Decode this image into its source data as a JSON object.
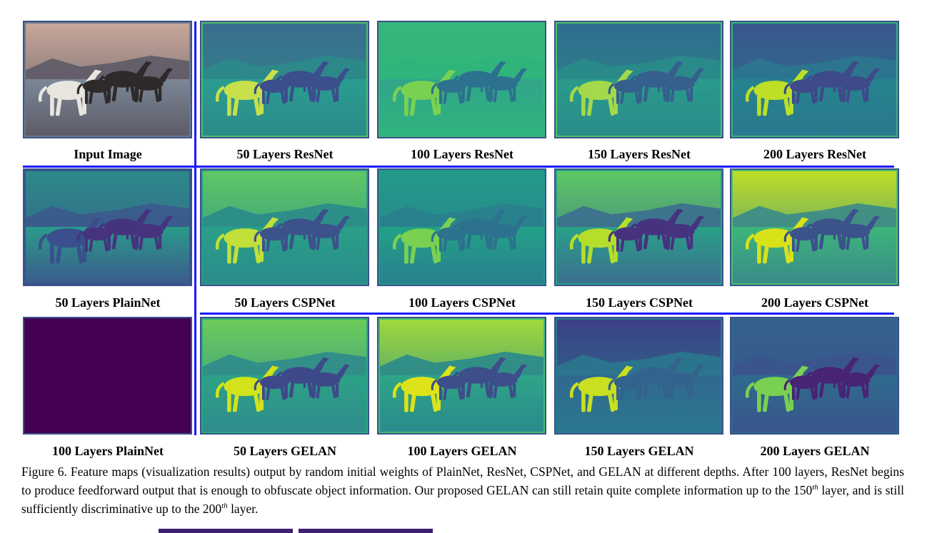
{
  "figure": {
    "rows": [
      {
        "tiles": [
          {
            "label": "Input Image",
            "kind": "input"
          },
          {
            "label": "50 Layers ResNet",
            "kind": "resnet50"
          },
          {
            "label": "100 Layers ResNet",
            "kind": "resnet100"
          },
          {
            "label": "150 Layers ResNet",
            "kind": "resnet150"
          },
          {
            "label": "200 Layers ResNet",
            "kind": "resnet200"
          }
        ]
      },
      {
        "tiles": [
          {
            "label": "50 Layers PlainNet",
            "kind": "plain50"
          },
          {
            "label": "50 Layers CSPNet",
            "kind": "csp50"
          },
          {
            "label": "100 Layers CSPNet",
            "kind": "csp100"
          },
          {
            "label": "150 Layers CSPNet",
            "kind": "csp150"
          },
          {
            "label": "200 Layers CSPNet",
            "kind": "csp200"
          }
        ]
      },
      {
        "tiles": [
          {
            "label": "100 Layers PlainNet",
            "kind": "plain100"
          },
          {
            "label": "50 Layers GELAN",
            "kind": "gelan50"
          },
          {
            "label": "100 Layers GELAN",
            "kind": "gelan100"
          },
          {
            "label": "150 Layers GELAN",
            "kind": "gelan150"
          },
          {
            "label": "200 Layers GELAN",
            "kind": "gelan200"
          }
        ]
      }
    ],
    "caption": {
      "part1": "Figure 6. Feature maps (visualization results) output by random initial weights of PlainNet, ResNet, CSPNet, and GELAN at different depths. After 100 layers, ResNet begins to produce feedforward output that is enough to obfuscate object information. Our proposed GELAN can still retain quite complete information up to the 150",
      "sup1": "th",
      "part2": " layer, and is still sufficiently discriminative up to the 200",
      "sup2": "th",
      "part3": " layer."
    },
    "colors": {
      "divider": "#1a1aff",
      "viridis_dark": "#440154",
      "viridis_blue": "#3b528b",
      "viridis_teal": "#21918c",
      "viridis_green": "#5ec962",
      "viridis_yellow": "#fde725"
    }
  }
}
